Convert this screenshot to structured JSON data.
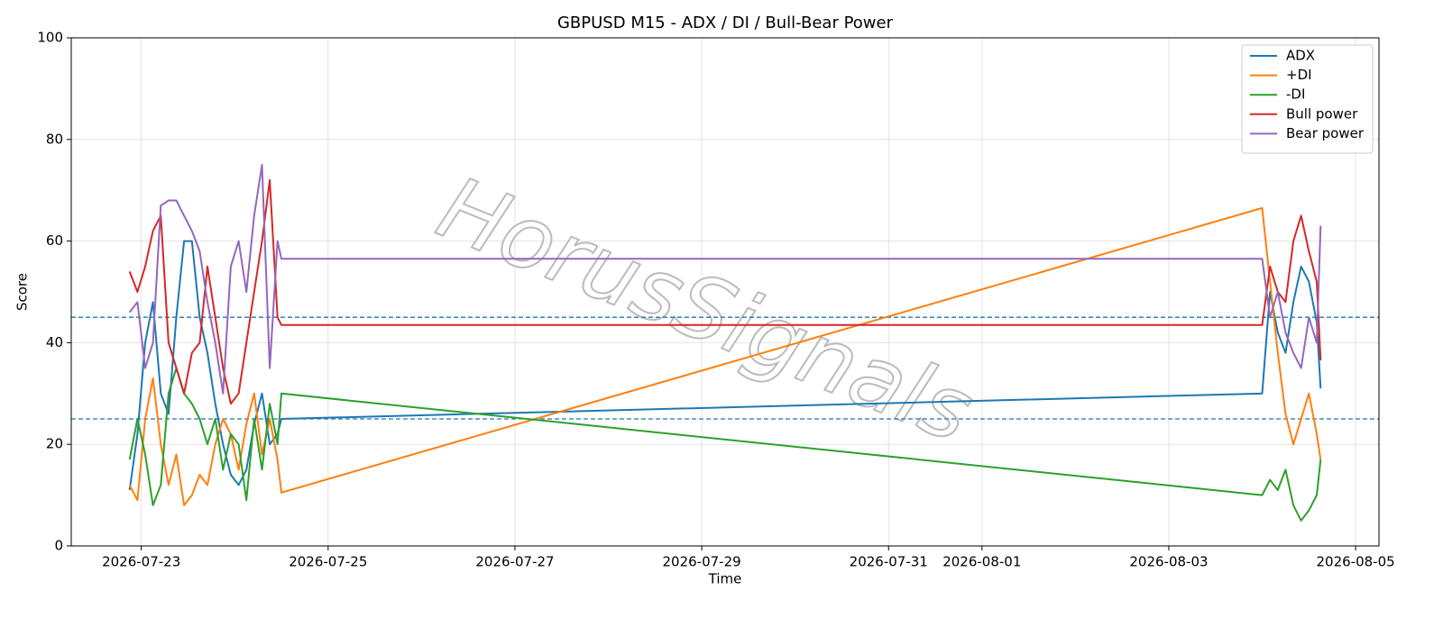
{
  "chart_data": {
    "type": "line",
    "title": "GBPUSD M15 - ADX / DI / Bull-Bear Power",
    "x_label": "Time",
    "y_label": "Score",
    "watermark": "HorusSignals",
    "x": [
      "2026-07-22 21:00",
      "2026-07-22 23:00",
      "2026-07-23 01:00",
      "2026-07-23 03:00",
      "2026-07-23 05:00",
      "2026-07-23 07:00",
      "2026-07-23 09:00",
      "2026-07-23 11:00",
      "2026-07-23 13:00",
      "2026-07-23 15:00",
      "2026-07-23 17:00",
      "2026-07-23 19:00",
      "2026-07-23 21:00",
      "2026-07-23 23:00",
      "2026-07-24 01:00",
      "2026-07-24 03:00",
      "2026-07-24 05:00",
      "2026-07-24 07:00",
      "2026-07-24 09:00",
      "2026-07-24 11:00",
      "2026-07-24 12:00",
      "2026-08-04 00:00",
      "2026-08-04 02:00",
      "2026-08-04 04:00",
      "2026-08-04 06:00",
      "2026-08-04 08:00",
      "2026-08-04 10:00",
      "2026-08-04 12:00",
      "2026-08-04 14:00",
      "2026-08-04 15:00"
    ],
    "series": [
      {
        "name": "ADX",
        "color": "#1f77b4",
        "values": [
          11,
          22,
          40,
          48,
          30,
          26,
          45,
          60,
          60,
          45,
          38,
          28,
          20,
          14,
          12,
          15,
          24,
          30,
          20,
          22,
          25,
          30,
          50,
          42,
          38,
          48,
          55,
          52,
          44,
          31
        ]
      },
      {
        "name": "+DI",
        "color": "#ff7f0e",
        "values": [
          12,
          9,
          25,
          33,
          20,
          12,
          18,
          8,
          10,
          14,
          12,
          20,
          25,
          22,
          15,
          24,
          30,
          18,
          25,
          17,
          10.5,
          66.5,
          52,
          38,
          26,
          20,
          25,
          30,
          22,
          17
        ]
      },
      {
        "name": "-DI",
        "color": "#2ca02c",
        "values": [
          17,
          25,
          18,
          8,
          12,
          30,
          35,
          30,
          28,
          25,
          20,
          25,
          15,
          22,
          20,
          9,
          25,
          15,
          28,
          20,
          30,
          10,
          13,
          11,
          15,
          8,
          5,
          7,
          10,
          17
        ]
      },
      {
        "name": "Bull power",
        "color": "#d62728",
        "values": [
          54,
          50,
          55,
          62,
          65,
          40,
          35,
          30,
          38,
          40,
          55,
          45,
          35,
          28,
          30,
          40,
          50,
          60,
          72,
          45,
          43.5,
          43.5,
          55,
          50,
          48,
          60,
          65,
          58,
          52,
          36.5
        ]
      },
      {
        "name": "Bear power",
        "color": "#9467bd",
        "values": [
          46,
          48,
          35,
          40,
          67,
          68,
          68,
          65,
          62,
          58,
          48,
          40,
          30,
          55,
          60,
          50,
          65,
          75,
          35,
          60,
          56.5,
          56.5,
          45,
          50,
          42,
          38,
          35,
          45,
          40,
          63
        ]
      }
    ],
    "reference_lines": [
      25,
      45
    ],
    "reference_color": "#1f77b4",
    "xlim": [
      "2026-07-22 06:00",
      "2026-08-05 06:00"
    ],
    "xticks": [
      "2026-07-23",
      "2026-07-25",
      "2026-07-27",
      "2026-07-29",
      "2026-07-31",
      "2026-08-01",
      "2026-08-03",
      "2026-08-05"
    ],
    "ylim": [
      0,
      100
    ],
    "yticks": [
      0,
      20,
      40,
      60,
      80,
      100
    ],
    "grid": true,
    "legend": "upper-right"
  }
}
